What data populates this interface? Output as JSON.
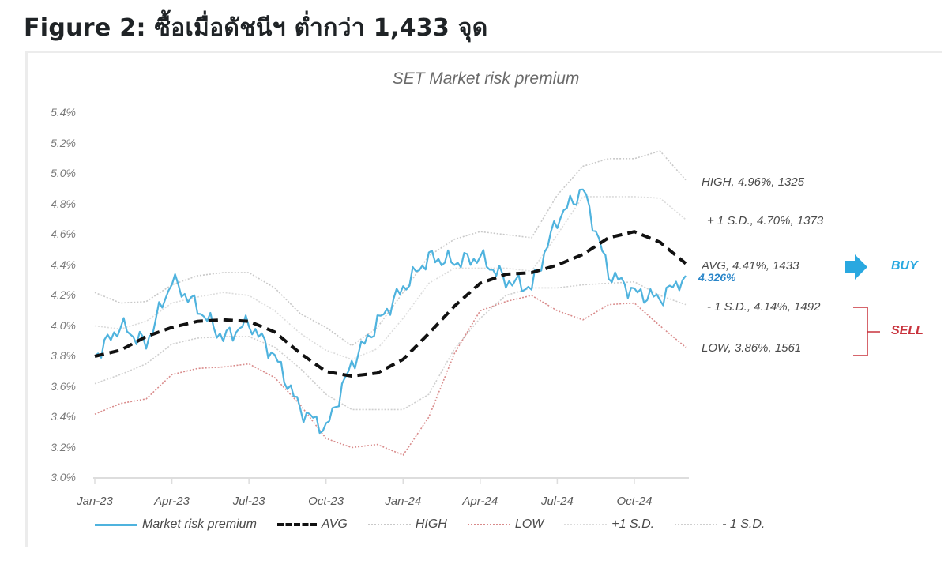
{
  "figure": {
    "title": "Figure 2: ซื้อเมื่อดัชนีฯ ต่ำกว่า 1,433 จุด"
  },
  "chart_data": {
    "type": "line",
    "title": "SET Market risk premium",
    "xlabel": "",
    "ylabel": "",
    "ylim": [
      3.0,
      5.4
    ],
    "y_ticks": [
      "5.4%",
      "5.2%",
      "5.0%",
      "4.8%",
      "4.6%",
      "4.4%",
      "4.2%",
      "4.0%",
      "3.8%",
      "3.6%",
      "3.4%",
      "3.2%",
      "3.0%"
    ],
    "x_ticks": [
      "Jan-23",
      "Apr-23",
      "Jul-23",
      "Oct-23",
      "Jan-24",
      "Apr-24",
      "Jul-24",
      "Oct-24"
    ],
    "grid": false,
    "legend_position": "bottom",
    "x": [
      "Jan-23",
      "Feb-23",
      "Mar-23",
      "Apr-23",
      "May-23",
      "Jun-23",
      "Jul-23",
      "Aug-23",
      "Sep-23",
      "Oct-23",
      "Nov-23",
      "Dec-23",
      "Jan-24",
      "Feb-24",
      "Mar-24",
      "Apr-24",
      "May-24",
      "Jun-24",
      "Jul-24",
      "Aug-24",
      "Sep-24",
      "Oct-24",
      "Nov-24",
      "Dec-24"
    ],
    "series": [
      {
        "name": "Market risk premium",
        "color": "#4fb3de",
        "style": "solid",
        "values": [
          3.8,
          4.0,
          3.88,
          4.3,
          4.12,
          3.92,
          4.02,
          3.8,
          3.45,
          3.32,
          3.75,
          4.02,
          4.25,
          4.45,
          4.42,
          4.45,
          4.3,
          4.25,
          4.7,
          4.9,
          4.35,
          4.22,
          4.18,
          4.33
        ]
      },
      {
        "name": "AVG",
        "color": "#111111",
        "style": "dashed",
        "values": [
          3.8,
          3.84,
          3.93,
          3.99,
          4.03,
          4.04,
          4.03,
          3.96,
          3.82,
          3.7,
          3.67,
          3.69,
          3.78,
          3.95,
          4.13,
          4.28,
          4.34,
          4.35,
          4.4,
          4.47,
          4.58,
          4.62,
          4.55,
          4.41
        ]
      },
      {
        "name": "HIGH",
        "color": "#c9c9c9",
        "style": "dotted",
        "values": [
          4.22,
          4.15,
          4.16,
          4.27,
          4.33,
          4.35,
          4.35,
          4.25,
          4.08,
          3.99,
          3.87,
          3.99,
          4.22,
          4.46,
          4.57,
          4.62,
          4.6,
          4.58,
          4.86,
          5.05,
          5.1,
          5.1,
          5.15,
          4.96
        ]
      },
      {
        "name": "LOW",
        "color": "#d98b8b",
        "style": "dotted",
        "values": [
          3.42,
          3.49,
          3.52,
          3.68,
          3.72,
          3.73,
          3.75,
          3.66,
          3.48,
          3.26,
          3.2,
          3.22,
          3.15,
          3.4,
          3.82,
          4.1,
          4.16,
          4.2,
          4.1,
          4.04,
          4.14,
          4.15,
          4.0,
          3.86
        ]
      },
      {
        "name": "+1 S.D.",
        "color": "#dcdcdc",
        "style": "dotted",
        "values": [
          4.0,
          3.98,
          4.03,
          4.15,
          4.19,
          4.22,
          4.2,
          4.1,
          3.95,
          3.84,
          3.78,
          3.85,
          4.05,
          4.28,
          4.38,
          4.38,
          4.38,
          4.36,
          4.6,
          4.85,
          4.85,
          4.85,
          4.84,
          4.7
        ]
      },
      {
        "name": "-1 S.D.",
        "color": "#cfcfcf",
        "style": "dotted",
        "values": [
          3.62,
          3.68,
          3.75,
          3.88,
          3.92,
          3.93,
          3.93,
          3.86,
          3.72,
          3.55,
          3.45,
          3.45,
          3.45,
          3.55,
          3.85,
          4.05,
          4.2,
          4.25,
          4.25,
          4.27,
          4.28,
          4.29,
          4.2,
          4.14
        ]
      }
    ],
    "annotations": [
      {
        "label": "HIGH, 4.96%, 1325"
      },
      {
        "label": "+ 1 S.D., 4.70%, 1373"
      },
      {
        "label": "AVG, 4.41%, 1433"
      },
      {
        "label": "4.326%"
      },
      {
        "label": "- 1 S.D., 4.14%, 1492"
      },
      {
        "label": "LOW, 3.86%, 1561"
      }
    ],
    "signals": [
      {
        "label": "BUY",
        "color": "#29a8e0"
      },
      {
        "label": "SELL",
        "color": "#c8323c"
      }
    ]
  },
  "annotations": {
    "high": "HIGH, 4.96%, 1325",
    "plus1sd": "+ 1 S.D., 4.70%, 1373",
    "avg": "AVG, 4.41%, 1433",
    "current": "4.326%",
    "minus1sd": "- 1 S.D., 4.14%, 1492",
    "low": "LOW, 3.86%, 1561",
    "buy": "BUY",
    "sell": "SELL"
  },
  "legend": {
    "mrp": "Market risk premium",
    "avg": "AVG",
    "high": "HIGH",
    "low": "LOW",
    "plus1sd": "+1 S.D.",
    "minus1sd": "- 1 S.D."
  },
  "colors": {
    "mrp": "#4fb3de",
    "avg": "#111111",
    "high": "#c9c9c9",
    "low": "#d98b8b",
    "buy": "#29a8e0",
    "sell": "#c8323c"
  }
}
